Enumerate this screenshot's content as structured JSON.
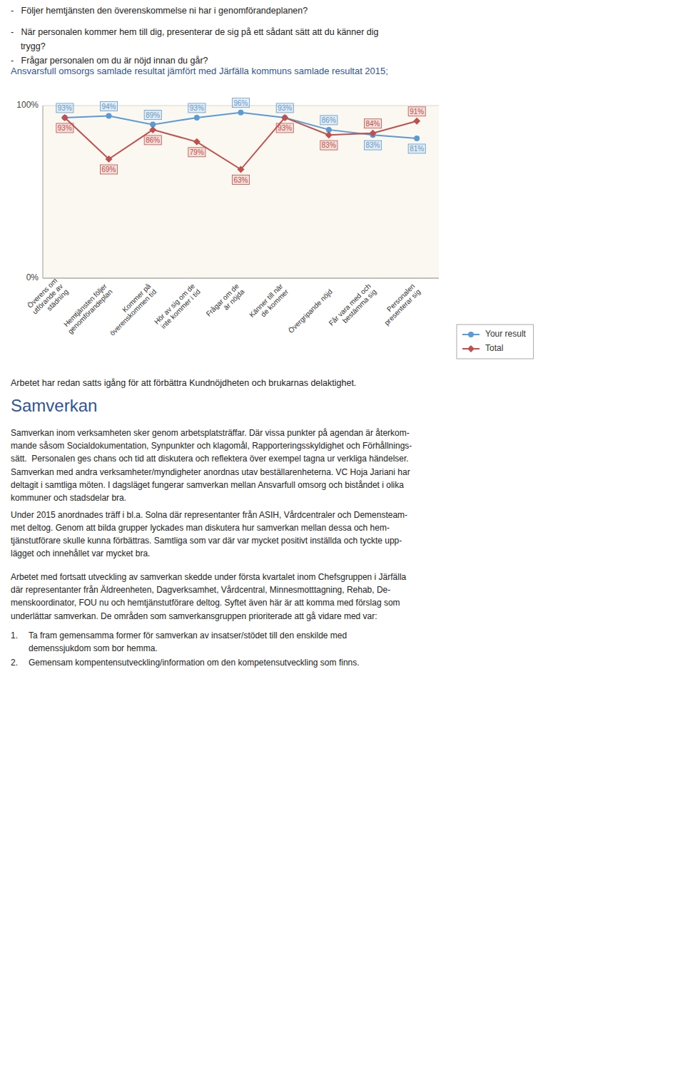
{
  "chart_data": {
    "type": "line",
    "title": "Ansvarsfull omsorgs samlade resultat jämfört med Järfälla kommuns samlade resultat 2015;",
    "categories": [
      "Överens om\nutförande av\nstädning",
      "Hemtjänsten följer\ngenomförandeplan",
      "Kommer på\növerenskommen tid",
      "Hör av sig om de\ninte kommer i tid",
      "Frågar om de\när nöjda",
      "Känner till när\nde kommer",
      "Övergripande nöjd",
      "Får vara med och\nbestämma sig",
      "Personalen\npresenterar sig"
    ],
    "series": [
      {
        "name": "Your result",
        "color": "#5B9BD5",
        "marker": "circle",
        "values": [
          93,
          94,
          89,
          93,
          96,
          93,
          86,
          83,
          81
        ],
        "value_labels": [
          "93%",
          "94%",
          "89%",
          "93%",
          "96%",
          "93%",
          "86%",
          "83%",
          "81%"
        ]
      },
      {
        "name": "Total",
        "color": "#C0504D",
        "marker": "diamond",
        "values": [
          93,
          69,
          86,
          79,
          63,
          93,
          83,
          84,
          91
        ],
        "value_labels": [
          "93%",
          "69%",
          "86%",
          "79%",
          "63%",
          "93%",
          "83%",
          "84%",
          "91%"
        ]
      }
    ],
    "ylim": [
      0,
      100
    ],
    "yticks": [
      {
        "value": 0,
        "label": "0%"
      },
      {
        "value": 100,
        "label": "100%"
      }
    ],
    "grid": true,
    "legend": "right",
    "data_labels": true
  },
  "text": {
    "bullets": [
      "-   Följer hemtjänsten den överenskommelse ni har i genomförandeplanen?",
      "-   När personalen kommer hem till dig, presenterar de sig på ett sådant sätt att du känner dig",
      "    trygg?",
      "-   Frågar personalen om du är nöjd innan du går?"
    ],
    "text_below": "Arbetet har redan satts igång för att förbättra Kundnöjdheten och brukarnas delaktighet.",
    "heading": "Samverkan",
    "paragraphs": [
      [
        "Samverkan inom verksamheten sker genom arbetsplatsträffar. Där vissa punkter på agendan är återkom-",
        "mande såsom Socialdokumentation, Synpunkter och klagomål, Rapporteringsskyldighet och Förhållnings-",
        "sätt.  Personalen ges chans och tid att diskutera och reflektera över exempel tagna ur verkliga händelser.",
        "Samverkan med andra verksamheter/myndigheter anordnas utav beställarenheterna. VC Hoja Jariani har",
        "deltagit i samtliga möten. I dagsläget fungerar samverkan mellan Ansvarfull omsorg och biståndet i olika",
        "kommuner och stadsdelar bra."
      ],
      [
        "Under 2015 anordnades träff i bl.a. Solna där representanter från ASIH, Vårdcentraler och Demensteam-",
        "met deltog. Genom att bilda grupper lyckades man diskutera hur samverkan mellan dessa och hem-",
        "tjänstutförare skulle kunna förbättras. Samtliga som var där var mycket positivt inställda och tyckte upp-",
        "lägget och innehållet var mycket bra."
      ],
      [
        "Arbetet med fortsatt utveckling av samverkan skedde under första kvartalet inom Chefsgruppen i Järfälla",
        "där representanter från Äldreenheten, Dagverksamhet, Vårdcentral, Minnesmotttagning, Rehab, De-",
        "menskoordinator, FOU nu och hemtjänstutförare deltog. Syftet även här är att komma med förslag som",
        "underlättar samverkan. De områden som samverkansgruppen prioriterade att gå vidare med var:"
      ]
    ],
    "list": [
      {
        "number": "1.",
        "lines": [
          "Ta fram gemensamma former för samverkan av insatser/stödet till den enskilde med",
          "demenssjukdom som bor hemma."
        ]
      },
      {
        "number": "2.",
        "lines": [
          "Gemensam kompentensutveckling/information om den kompetensutveckling som finns."
        ]
      }
    ]
  }
}
